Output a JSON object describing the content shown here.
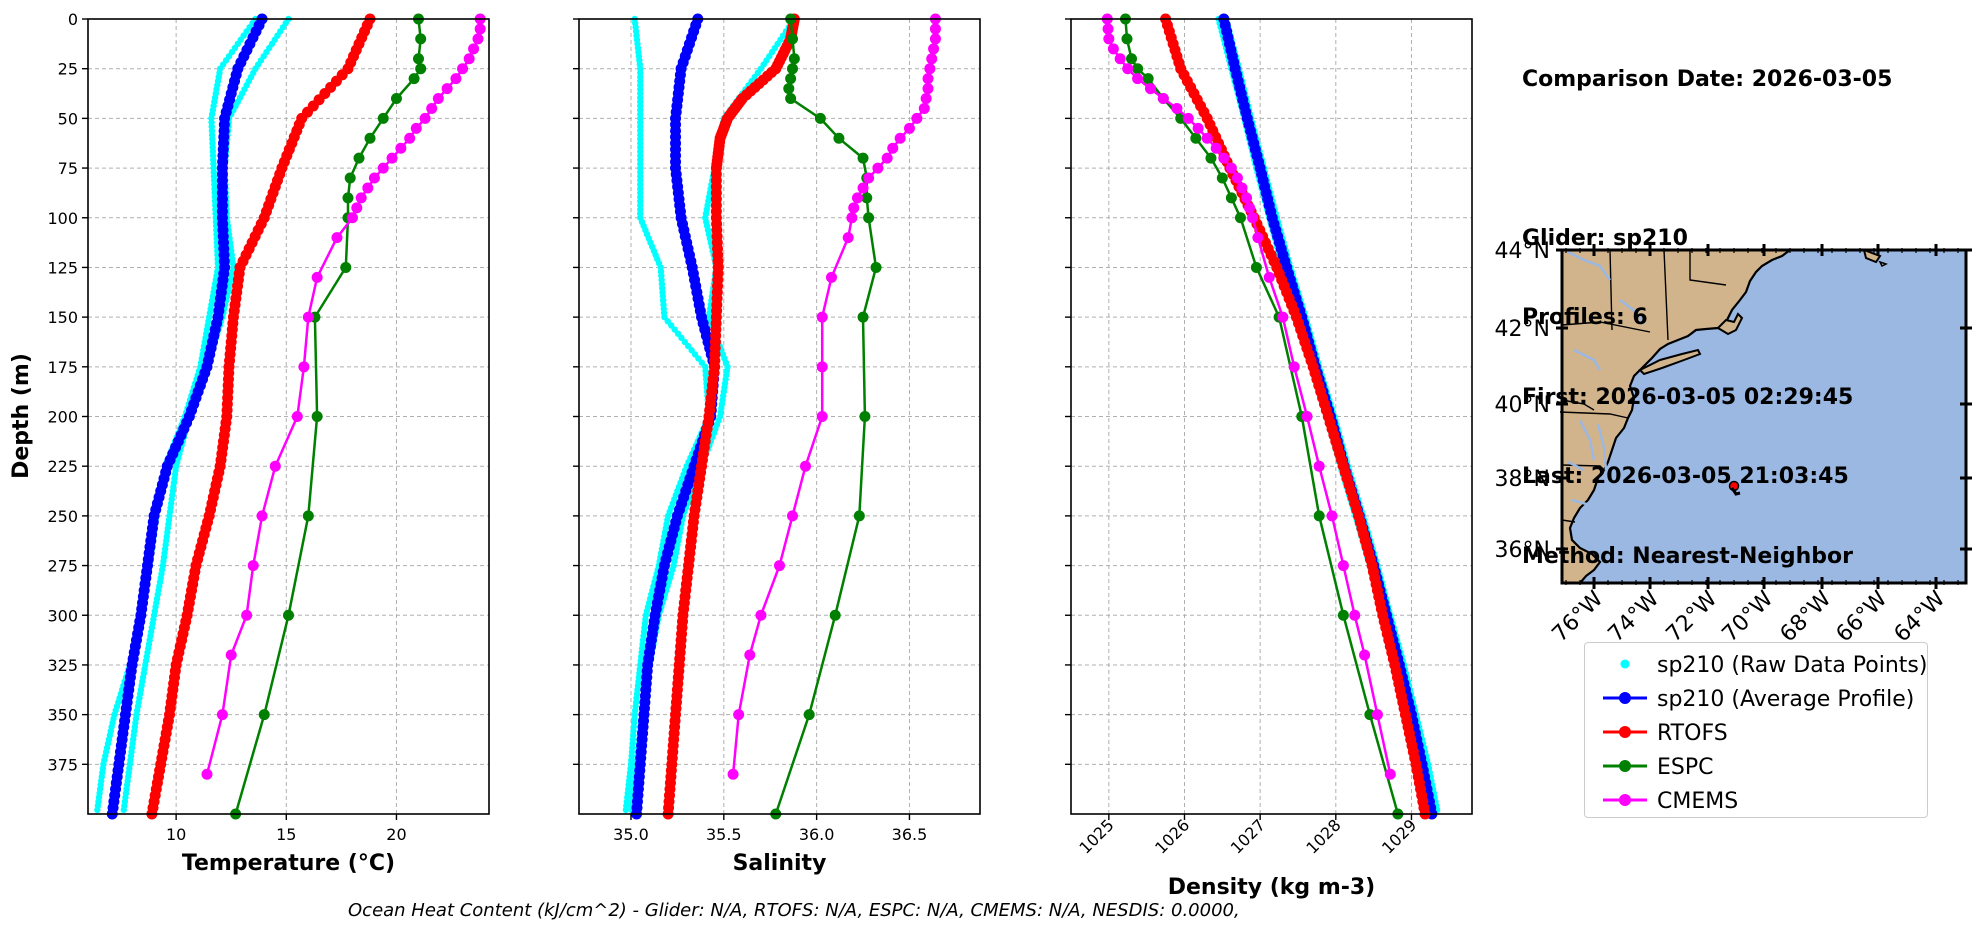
{
  "info": {
    "comparison_date": "Comparison Date: 2026-03-05",
    "glider": "Glider: sp210",
    "profiles": "Profiles: 6",
    "first": "First: 2026-03-05 02:29:45",
    "last": "Last: 2026-03-05 21:03:45",
    "method": "Method: Nearest-Neighbor"
  },
  "footer": "Ocean Heat Content (kJ/cm^2) - Glider: N/A,  RTOFS: N/A,  ESPC: N/A,  CMEMS: N/A,  NESDIS: 0.0000,",
  "legend": [
    {
      "label": "sp210 (Raw Data Points)",
      "color": "#00ffff",
      "style": "dots"
    },
    {
      "label": "sp210 (Average Profile)",
      "color": "#0000ff",
      "style": "line-marker"
    },
    {
      "label": "RTOFS",
      "color": "#ff0000",
      "style": "line-marker"
    },
    {
      "label": "ESPC",
      "color": "#008000",
      "style": "line-marker"
    },
    {
      "label": "CMEMS",
      "color": "#ff00ff",
      "style": "line-marker"
    }
  ],
  "chart_data": [
    {
      "type": "line",
      "xlabel": "Temperature (°C)",
      "ylabel": "Depth (m)",
      "xlim": [
        6,
        24.2
      ],
      "ylim": [
        400,
        0
      ],
      "xticks": [
        10,
        15,
        20
      ],
      "yticks": [
        0,
        25,
        50,
        75,
        100,
        125,
        150,
        175,
        200,
        225,
        250,
        275,
        300,
        325,
        350,
        375
      ],
      "grid": true,
      "series": [
        {
          "name": "sp210 (Raw Data Points)",
          "color": "#00ffff",
          "style": "dots",
          "curves": [
            {
              "depth": [
                0,
                25,
                50,
                75,
                100,
                125,
                150,
                175,
                200,
                225,
                250,
                275,
                300,
                325,
                350,
                375,
                400
              ],
              "values": [
                13.6,
                12.0,
                11.6,
                11.7,
                11.8,
                11.9,
                11.5,
                11.1,
                10.4,
                9.5,
                9.1,
                8.8,
                8.4,
                7.9,
                7.2,
                6.7,
                6.4
              ]
            },
            {
              "depth": [
                0,
                25,
                50,
                75,
                100,
                125,
                150,
                175,
                200,
                225,
                250,
                275,
                300,
                325,
                350,
                375,
                400
              ],
              "values": [
                15.1,
                13.6,
                12.4,
                12.2,
                12.3,
                12.6,
                12.1,
                11.4,
                10.6,
                10.0,
                9.7,
                9.4,
                9.0,
                8.6,
                8.2,
                7.9,
                7.6
              ]
            }
          ]
        },
        {
          "name": "sp210 (Average Profile)",
          "color": "#0000ff",
          "style": "line-marker",
          "depth": [
            0,
            25,
            50,
            75,
            100,
            125,
            150,
            175,
            200,
            225,
            250,
            275,
            300,
            325,
            350,
            375,
            400
          ],
          "values": [
            13.9,
            12.8,
            12.2,
            12.1,
            12.1,
            12.2,
            11.9,
            11.4,
            10.6,
            9.6,
            9.0,
            8.7,
            8.4,
            8.0,
            7.7,
            7.4,
            7.1
          ]
        },
        {
          "name": "RTOFS",
          "color": "#ff0000",
          "style": "line-marker",
          "depth": [
            0,
            25,
            50,
            75,
            100,
            125,
            150,
            175,
            200,
            225,
            250,
            275,
            300,
            325,
            350,
            375,
            400
          ],
          "values": [
            18.8,
            17.8,
            15.7,
            14.8,
            14.0,
            12.9,
            12.6,
            12.4,
            12.3,
            12.0,
            11.5,
            10.9,
            10.5,
            10.0,
            9.7,
            9.3,
            8.9
          ]
        },
        {
          "name": "ESPC",
          "color": "#008000",
          "style": "line-marker",
          "depth": [
            0,
            10,
            20,
            25,
            30,
            40,
            50,
            60,
            70,
            80,
            90,
            100,
            125,
            150,
            200,
            250,
            300,
            350,
            400
          ],
          "values": [
            21.0,
            21.1,
            21.0,
            21.1,
            20.8,
            20.0,
            19.4,
            18.8,
            18.3,
            17.9,
            17.8,
            17.8,
            17.7,
            16.3,
            16.4,
            16.0,
            15.1,
            14.0,
            12.7
          ]
        },
        {
          "name": "CMEMS",
          "color": "#ff00ff",
          "style": "line-marker",
          "depth": [
            0,
            5,
            10,
            15,
            20,
            25,
            30,
            35,
            40,
            45,
            50,
            55,
            60,
            65,
            70,
            75,
            80,
            85,
            90,
            95,
            100,
            110,
            130,
            150,
            175,
            200,
            225,
            250,
            275,
            300,
            320,
            350,
            380
          ],
          "values": [
            23.8,
            23.8,
            23.7,
            23.5,
            23.3,
            23.0,
            22.7,
            22.3,
            21.9,
            21.6,
            21.3,
            20.9,
            20.6,
            20.2,
            19.8,
            19.4,
            19.0,
            18.7,
            18.4,
            18.2,
            18.0,
            17.3,
            16.4,
            16.0,
            15.8,
            15.5,
            14.5,
            13.9,
            13.5,
            13.2,
            12.5,
            12.1,
            11.4
          ]
        }
      ]
    },
    {
      "type": "line",
      "xlabel": "Salinity",
      "xlim": [
        34.72,
        36.88
      ],
      "ylim": [
        400,
        0
      ],
      "xticks": [
        35.0,
        35.5,
        36.0,
        36.5
      ],
      "grid": true,
      "series": [
        {
          "name": "sp210 (Raw Data Points)",
          "color": "#00ffff",
          "style": "dots",
          "curves": [
            {
              "depth": [
                0,
                25,
                50,
                75,
                100,
                125,
                150,
                175,
                200,
                225,
                250,
                275,
                300,
                325,
                350,
                375,
                400
              ],
              "values": [
                35.02,
                35.05,
                35.05,
                35.05,
                35.05,
                35.16,
                35.18,
                35.4,
                35.42,
                35.3,
                35.2,
                35.15,
                35.08,
                35.05,
                35.02,
                35.0,
                34.97
              ]
            },
            {
              "depth": [
                0,
                25,
                50,
                75,
                100,
                125,
                150,
                175,
                200,
                225,
                250,
                275,
                300,
                325,
                350,
                375,
                400
              ],
              "values": [
                35.88,
                35.7,
                35.5,
                35.45,
                35.4,
                35.46,
                35.42,
                35.52,
                35.48,
                35.38,
                35.28,
                35.23,
                35.15,
                35.1,
                35.06,
                35.03,
                35.0
              ]
            }
          ]
        },
        {
          "name": "sp210 (Average Profile)",
          "color": "#0000ff",
          "style": "line-marker",
          "depth": [
            0,
            25,
            50,
            75,
            100,
            125,
            150,
            175,
            200,
            225,
            250,
            275,
            300,
            325,
            350,
            375,
            400
          ],
          "values": [
            35.36,
            35.27,
            35.24,
            35.24,
            35.27,
            35.33,
            35.38,
            35.45,
            35.43,
            35.34,
            35.25,
            35.18,
            35.13,
            35.09,
            35.07,
            35.05,
            35.03
          ]
        },
        {
          "name": "RTOFS",
          "color": "#ff0000",
          "style": "line-marker",
          "depth": [
            0,
            10,
            25,
            40,
            50,
            60,
            75,
            100,
            125,
            150,
            175,
            200,
            225,
            250,
            275,
            300,
            325,
            350,
            375,
            400
          ],
          "values": [
            35.88,
            35.86,
            35.78,
            35.6,
            35.52,
            35.48,
            35.46,
            35.46,
            35.47,
            35.46,
            35.45,
            35.42,
            35.38,
            35.34,
            35.31,
            35.28,
            35.26,
            35.24,
            35.22,
            35.2
          ]
        },
        {
          "name": "ESPC",
          "color": "#008000",
          "style": "line-marker",
          "depth": [
            0,
            10,
            20,
            25,
            30,
            35,
            40,
            50,
            60,
            70,
            80,
            90,
            100,
            125,
            150,
            200,
            250,
            300,
            350,
            400
          ],
          "values": [
            35.86,
            35.87,
            35.88,
            35.87,
            35.86,
            35.85,
            35.86,
            36.02,
            36.12,
            36.25,
            36.27,
            36.27,
            36.28,
            36.32,
            36.25,
            36.26,
            36.23,
            36.1,
            35.96,
            35.78
          ]
        },
        {
          "name": "CMEMS",
          "color": "#ff00ff",
          "style": "line-marker",
          "depth": [
            0,
            5,
            10,
            15,
            20,
            25,
            30,
            35,
            40,
            45,
            50,
            55,
            60,
            65,
            70,
            75,
            80,
            85,
            90,
            95,
            100,
            110,
            130,
            150,
            175,
            200,
            225,
            250,
            275,
            300,
            320,
            350,
            380
          ],
          "values": [
            36.64,
            36.64,
            36.64,
            36.63,
            36.62,
            36.61,
            36.6,
            36.6,
            36.59,
            36.58,
            36.54,
            36.5,
            36.45,
            36.41,
            36.38,
            36.33,
            36.28,
            36.25,
            36.22,
            36.2,
            36.19,
            36.17,
            36.08,
            36.03,
            36.03,
            36.03,
            35.94,
            35.87,
            35.8,
            35.7,
            35.64,
            35.58,
            35.55
          ]
        }
      ]
    },
    {
      "type": "line",
      "xlabel": "Density (kg m-3)",
      "xlim": [
        1024.5,
        1029.8
      ],
      "ylim": [
        400,
        0
      ],
      "xticks": [
        1025,
        1026,
        1027,
        1028,
        1029
      ],
      "grid": true,
      "series": [
        {
          "name": "sp210 (Raw Data Points)",
          "color": "#00ffff",
          "style": "dots",
          "curves": [
            {
              "depth": [
                0,
                25,
                50,
                75,
                100,
                125,
                150,
                175,
                200,
                225,
                250,
                275,
                300,
                325,
                350,
                375,
                400
              ],
              "values": [
                1026.45,
                1026.62,
                1026.79,
                1026.95,
                1027.12,
                1027.3,
                1027.5,
                1027.68,
                1027.88,
                1028.06,
                1028.26,
                1028.45,
                1028.62,
                1028.8,
                1028.96,
                1029.12,
                1029.25
              ]
            },
            {
              "depth": [
                0,
                25,
                50,
                75,
                100,
                125,
                150,
                175,
                200,
                225,
                250,
                275,
                300,
                325,
                350,
                375,
                400
              ],
              "values": [
                1026.55,
                1026.72,
                1026.88,
                1027.05,
                1027.22,
                1027.4,
                1027.6,
                1027.78,
                1027.98,
                1028.16,
                1028.36,
                1028.55,
                1028.72,
                1028.9,
                1029.06,
                1029.22,
                1029.35
              ]
            }
          ]
        },
        {
          "name": "sp210 (Average Profile)",
          "color": "#0000ff",
          "style": "line-marker",
          "depth": [
            0,
            25,
            50,
            75,
            100,
            125,
            150,
            175,
            200,
            225,
            250,
            275,
            300,
            325,
            350,
            375,
            400
          ],
          "values": [
            1026.52,
            1026.67,
            1026.83,
            1027.0,
            1027.16,
            1027.35,
            1027.55,
            1027.73,
            1027.93,
            1028.11,
            1028.31,
            1028.5,
            1028.67,
            1028.84,
            1029.0,
            1029.14,
            1029.27
          ]
        },
        {
          "name": "RTOFS",
          "color": "#ff0000",
          "style": "line-marker",
          "depth": [
            0,
            25,
            50,
            75,
            100,
            125,
            150,
            175,
            200,
            225,
            250,
            275,
            300,
            325,
            350,
            375,
            400
          ],
          "values": [
            1025.75,
            1025.95,
            1026.3,
            1026.6,
            1026.92,
            1027.22,
            1027.48,
            1027.7,
            1027.9,
            1028.1,
            1028.3,
            1028.48,
            1028.62,
            1028.78,
            1028.92,
            1029.06,
            1029.18
          ]
        },
        {
          "name": "ESPC",
          "color": "#008000",
          "style": "line-marker",
          "depth": [
            0,
            10,
            20,
            25,
            30,
            40,
            50,
            60,
            70,
            80,
            90,
            100,
            125,
            150,
            200,
            250,
            300,
            350,
            400
          ],
          "values": [
            1025.22,
            1025.24,
            1025.3,
            1025.38,
            1025.52,
            1025.72,
            1025.95,
            1026.15,
            1026.35,
            1026.5,
            1026.62,
            1026.74,
            1026.95,
            1027.25,
            1027.55,
            1027.78,
            1028.1,
            1028.45,
            1028.82
          ]
        },
        {
          "name": "CMEMS",
          "color": "#ff00ff",
          "style": "line-marker",
          "depth": [
            0,
            5,
            10,
            15,
            20,
            25,
            30,
            35,
            40,
            45,
            50,
            55,
            60,
            65,
            70,
            75,
            80,
            85,
            90,
            95,
            100,
            110,
            130,
            150,
            175,
            200,
            225,
            250,
            275,
            300,
            320,
            350,
            380
          ],
          "values": [
            1024.98,
            1024.99,
            1025.0,
            1025.06,
            1025.15,
            1025.25,
            1025.38,
            1025.55,
            1025.72,
            1025.9,
            1026.05,
            1026.18,
            1026.3,
            1026.42,
            1026.52,
            1026.62,
            1026.7,
            1026.76,
            1026.82,
            1026.86,
            1026.9,
            1026.97,
            1027.12,
            1027.3,
            1027.45,
            1027.62,
            1027.78,
            1027.95,
            1028.1,
            1028.25,
            1028.38,
            1028.55,
            1028.72
          ]
        }
      ]
    }
  ],
  "map": {
    "lat_ticks": [
      "44°N",
      "42°N",
      "40°N",
      "38°N",
      "36°N"
    ],
    "lon_ticks": [
      "76°W",
      "74°W",
      "72°W",
      "70°W",
      "68°W",
      "66°W",
      "64°W"
    ],
    "land_color": "#d2b48c",
    "ocean_color": "#9ab8e2",
    "lake_color": "#9ab8e2",
    "glider_color": "#ff0000"
  }
}
